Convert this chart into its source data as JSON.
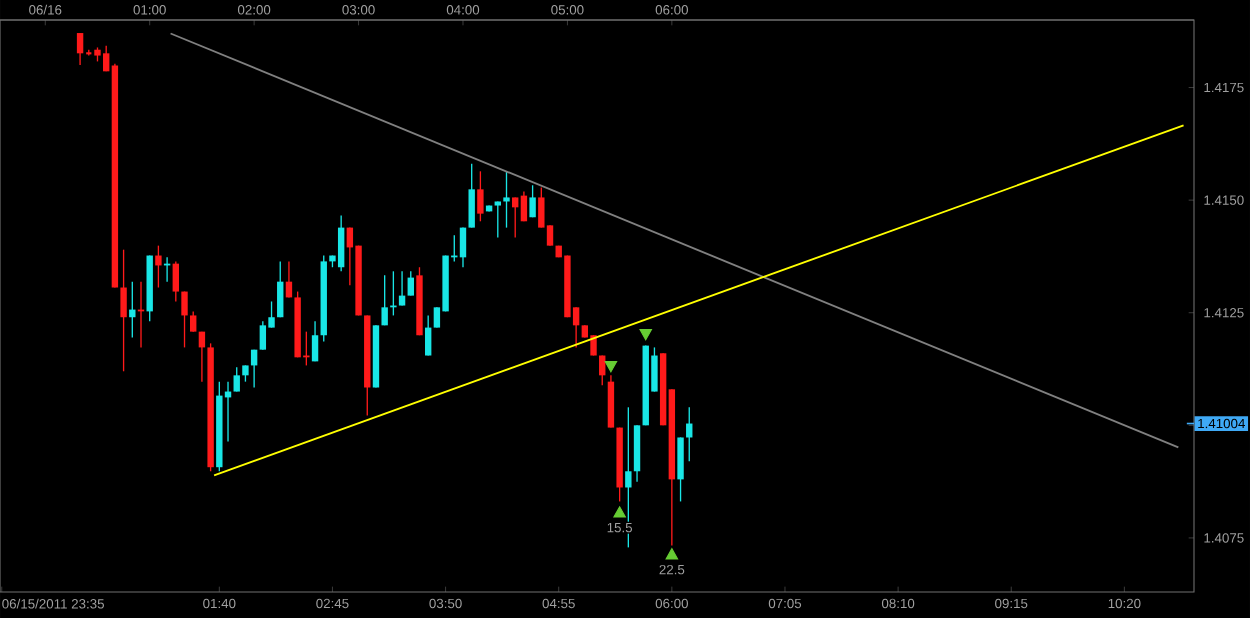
{
  "chart_data": {
    "type": "candlestick",
    "x": [
      "2011-06-16T00:20",
      "2011-06-16T00:25",
      "2011-06-16T00:30",
      "2011-06-16T00:35",
      "2011-06-16T00:40",
      "2011-06-16T00:45",
      "2011-06-16T00:50",
      "2011-06-16T00:55",
      "2011-06-16T01:00",
      "2011-06-16T01:05",
      "2011-06-16T01:10",
      "2011-06-16T01:15",
      "2011-06-16T01:20",
      "2011-06-16T01:25",
      "2011-06-16T01:30",
      "2011-06-16T01:35",
      "2011-06-16T01:40",
      "2011-06-16T01:45",
      "2011-06-16T01:50",
      "2011-06-16T01:55",
      "2011-06-16T02:00",
      "2011-06-16T02:05",
      "2011-06-16T02:10",
      "2011-06-16T02:15",
      "2011-06-16T02:20",
      "2011-06-16T02:25",
      "2011-06-16T02:30",
      "2011-06-16T02:35",
      "2011-06-16T02:40",
      "2011-06-16T02:45",
      "2011-06-16T02:50",
      "2011-06-16T02:55",
      "2011-06-16T03:00",
      "2011-06-16T03:05",
      "2011-06-16T03:10",
      "2011-06-16T03:15",
      "2011-06-16T03:20",
      "2011-06-16T03:25",
      "2011-06-16T03:30",
      "2011-06-16T03:35",
      "2011-06-16T03:40",
      "2011-06-16T03:45",
      "2011-06-16T03:50",
      "2011-06-16T03:55",
      "2011-06-16T04:00",
      "2011-06-16T04:05",
      "2011-06-16T04:10",
      "2011-06-16T04:15",
      "2011-06-16T04:20",
      "2011-06-16T04:25",
      "2011-06-16T04:30",
      "2011-06-16T04:35",
      "2011-06-16T04:40",
      "2011-06-16T04:45",
      "2011-06-16T04:50",
      "2011-06-16T04:55",
      "2011-06-16T05:00",
      "2011-06-16T05:05",
      "2011-06-16T05:10",
      "2011-06-16T05:15",
      "2011-06-16T05:20",
      "2011-06-16T05:25",
      "2011-06-16T05:30",
      "2011-06-16T05:35",
      "2011-06-16T05:40",
      "2011-06-16T05:45",
      "2011-06-16T05:50",
      "2011-06-16T05:55",
      "2011-06-16T06:00",
      "2011-06-16T06:05",
      "2011-06-16T06:10"
    ],
    "ohlc": [
      [
        1.41871,
        1.41871,
        1.418,
        1.41826
      ],
      [
        1.41826,
        1.41834,
        1.41821,
        1.41826
      ],
      [
        1.41834,
        1.41839,
        1.41808,
        1.41821
      ],
      [
        1.41826,
        1.41843,
        1.41786,
        1.41786
      ],
      [
        1.41799,
        1.41803,
        1.41306,
        1.41306
      ],
      [
        1.41306,
        1.4139,
        1.4112,
        1.4124
      ],
      [
        1.4124,
        1.41319,
        1.41195,
        1.41257
      ],
      [
        1.41257,
        1.41319,
        1.41173,
        1.41253
      ],
      [
        1.41253,
        1.41377,
        1.41231,
        1.41377
      ],
      [
        1.41377,
        1.41399,
        1.41306,
        1.41355
      ],
      [
        1.41355,
        1.41373,
        1.41319,
        1.41359
      ],
      [
        1.41359,
        1.41364,
        1.41275,
        1.41297
      ],
      [
        1.41297,
        1.41297,
        1.41173,
        1.41244
      ],
      [
        1.41244,
        1.41253,
        1.41208,
        1.41208
      ],
      [
        1.41208,
        1.41208,
        1.41097,
        1.41173
      ],
      [
        1.41173,
        1.41182,
        1.40898,
        1.40907
      ],
      [
        1.40907,
        1.41097,
        1.40898,
        1.41066
      ],
      [
        1.41062,
        1.41097,
        1.40964,
        1.41075
      ],
      [
        1.41075,
        1.41129,
        1.41075,
        1.41111
      ],
      [
        1.41111,
        1.41133,
        1.41097,
        1.41133
      ],
      [
        1.41133,
        1.41168,
        1.41084,
        1.41168
      ],
      [
        1.41168,
        1.41231,
        1.41168,
        1.41222
      ],
      [
        1.41217,
        1.41275,
        1.41217,
        1.4124
      ],
      [
        1.4124,
        1.41364,
        1.4124,
        1.41319
      ],
      [
        1.41319,
        1.41364,
        1.41284,
        1.41284
      ],
      [
        1.41284,
        1.41297,
        1.41151,
        1.41151
      ],
      [
        1.41155,
        1.41208,
        1.41133,
        1.41151
      ],
      [
        1.41142,
        1.41231,
        1.41142,
        1.412
      ],
      [
        1.412,
        1.41377,
        1.41186,
        1.41364
      ],
      [
        1.41364,
        1.41377,
        1.41351,
        1.41377
      ],
      [
        1.41351,
        1.41466,
        1.41342,
        1.41439
      ],
      [
        1.41439,
        1.41439,
        1.41311,
        1.41395
      ],
      [
        1.41399,
        1.41399,
        1.41244,
        1.41244
      ],
      [
        1.41244,
        1.41244,
        1.41022,
        1.41084
      ],
      [
        1.41084,
        1.41222,
        1.41084,
        1.41222
      ],
      [
        1.41222,
        1.41333,
        1.41222,
        1.41262
      ],
      [
        1.41262,
        1.41342,
        1.41244,
        1.41266
      ],
      [
        1.41266,
        1.41342,
        1.41266,
        1.41288
      ],
      [
        1.41288,
        1.41342,
        1.41288,
        1.41328
      ],
      [
        1.41333,
        1.41351,
        1.412,
        1.412
      ],
      [
        1.41155,
        1.41244,
        1.41155,
        1.41217
      ],
      [
        1.41217,
        1.41262,
        1.41217,
        1.41262
      ],
      [
        1.41253,
        1.41377,
        1.41253,
        1.41377
      ],
      [
        1.41373,
        1.41422,
        1.41364,
        1.41377
      ],
      [
        1.41373,
        1.41439,
        1.41351,
        1.41439
      ],
      [
        1.41439,
        1.41581,
        1.41439,
        1.41524
      ],
      [
        1.41524,
        1.41564,
        1.41453,
        1.4147
      ],
      [
        1.41475,
        1.41488,
        1.41475,
        1.41488
      ],
      [
        1.41488,
        1.41497,
        1.41417,
        1.41497
      ],
      [
        1.41497,
        1.41564,
        1.41439,
        1.41506
      ],
      [
        1.41506,
        1.41506,
        1.41417,
        1.41484
      ],
      [
        1.4151,
        1.41519,
        1.41453,
        1.41453
      ],
      [
        1.41462,
        1.41533,
        1.41462,
        1.41506
      ],
      [
        1.41506,
        1.41528,
        1.41439,
        1.41439
      ],
      [
        1.41444,
        1.41444,
        1.41399,
        1.41399
      ],
      [
        1.41399,
        1.41399,
        1.41373,
        1.41373
      ],
      [
        1.41377,
        1.41377,
        1.4124,
        1.4124
      ],
      [
        1.41262,
        1.41262,
        1.41173,
        1.41222
      ],
      [
        1.41222,
        1.41222,
        1.41195,
        1.41195
      ],
      [
        1.412,
        1.412,
        1.41155,
        1.41155
      ],
      [
        1.41155,
        1.41155,
        1.41089,
        1.41111
      ],
      [
        1.41097,
        1.41111,
        1.40995,
        1.40995
      ],
      [
        1.40995,
        1.40995,
        1.40831,
        1.40862
      ],
      [
        1.40862,
        1.4104,
        1.40729,
        1.40898
      ],
      [
        1.40898,
        1.41,
        1.40875,
        1.41
      ],
      [
        1.41,
        1.41177,
        1.41,
        1.41177
      ],
      [
        1.41075,
        1.41173,
        1.41075,
        1.41155
      ],
      [
        1.4116,
        1.4116,
        1.41,
        1.41
      ],
      [
        1.4108,
        1.4108,
        1.40733,
        1.4088
      ],
      [
        1.4088,
        1.40973,
        1.40831,
        1.40973
      ],
      [
        1.40973,
        1.4104,
        1.4092,
        1.41004
      ]
    ],
    "colors": [
      "#ff1a1a",
      "#ff1a1a",
      "#ff1a1a",
      "#ff1a1a",
      "#ff1a1a",
      "#ff1a1a",
      "#19e6e6",
      "#ff1a1a",
      "#19e6e6",
      "#ff1a1a",
      "#19e6e6",
      "#ff1a1a",
      "#ff1a1a",
      "#ff1a1a",
      "#ff1a1a",
      "#ff1a1a",
      "#19e6e6",
      "#19e6e6",
      "#19e6e6",
      "#19e6e6",
      "#19e6e6",
      "#19e6e6",
      "#19e6e6",
      "#19e6e6",
      "#ff1a1a",
      "#ff1a1a",
      "#ff1a1a",
      "#19e6e6",
      "#19e6e6",
      "#19e6e6",
      "#19e6e6",
      "#ff1a1a",
      "#ff1a1a",
      "#ff1a1a",
      "#19e6e6",
      "#19e6e6",
      "#19e6e6",
      "#19e6e6",
      "#19e6e6",
      "#ff1a1a",
      "#19e6e6",
      "#19e6e6",
      "#19e6e6",
      "#19e6e6",
      "#19e6e6",
      "#19e6e6",
      "#ff1a1a",
      "#19e6e6",
      "#19e6e6",
      "#19e6e6",
      "#ff1a1a",
      "#ff1a1a",
      "#19e6e6",
      "#ff1a1a",
      "#ff1a1a",
      "#ff1a1a",
      "#ff1a1a",
      "#ff1a1a",
      "#ff1a1a",
      "#ff1a1a",
      "#ff1a1a",
      "#ff1a1a",
      "#ff1a1a",
      "#19e6e6",
      "#19e6e6",
      "#19e6e6",
      "#19e6e6",
      "#ff1a1a",
      "#ff1a1a",
      "#19e6e6",
      "#19e6e6"
    ],
    "series": [
      {
        "type": "line",
        "color": "#808080",
        "x": [
          "2011-06-16T01:12",
          "2011-06-16T10:51"
        ],
        "values": [
          1.4187,
          1.40951
        ]
      },
      {
        "type": "line",
        "color": "#ffff00",
        "x": [
          "2011-06-16T01:37",
          "2011-06-16T10:54"
        ],
        "values": [
          1.40889,
          1.41666
        ]
      },
      {
        "type": "scatter",
        "color": "#66cc33",
        "marker": "triangle-down",
        "x": [
          "2011-06-16T05:25",
          "2011-06-16T05:45"
        ],
        "values": [
          1.41133,
          1.41204
        ]
      },
      {
        "type": "scatter",
        "color": "#66cc33",
        "marker": "triangle",
        "x": [
          "2011-06-16T05:30",
          "2011-06-16T06:00"
        ],
        "values": [
          1.40805,
          1.40712
        ]
      }
    ],
    "annotations": [
      "15.5",
      "22.5"
    ],
    "ref_lines": [
      {
        "axis": "y",
        "value": 1.41004,
        "label": "1.41004",
        "color": "#3fa9f5"
      }
    ],
    "xlim": [
      "2011-06-15T23:34",
      "2011-06-16T11:00"
    ],
    "x2lim": [
      "2011-06-15T23:34",
      "2011-06-16T11:00"
    ],
    "ylim": [
      1.4063,
      1.419
    ],
    "xticks": [
      {
        "value": "2011-06-15T23:35",
        "label": "06/15/2011 23:35"
      },
      {
        "value": "2011-06-16T01:40",
        "label": "01:40"
      },
      {
        "value": "2011-06-16T02:45",
        "label": "02:45"
      },
      {
        "value": "2011-06-16T03:50",
        "label": "03:50"
      },
      {
        "value": "2011-06-16T04:55",
        "label": "04:55"
      },
      {
        "value": "2011-06-16T06:00",
        "label": "06:00"
      },
      {
        "value": "2011-06-16T07:05",
        "label": "07:05"
      },
      {
        "value": "2011-06-16T08:10",
        "label": "08:10"
      },
      {
        "value": "2011-06-16T09:15",
        "label": "09:15"
      },
      {
        "value": "2011-06-16T10:20",
        "label": "10:20"
      }
    ],
    "x2ticks": [
      {
        "value": "2011-06-16T00:00",
        "label": "06/16"
      },
      {
        "value": "2011-06-16T01:00",
        "label": "01:00"
      },
      {
        "value": "2011-06-16T02:00",
        "label": "02:00"
      },
      {
        "value": "2011-06-16T03:00",
        "label": "03:00"
      },
      {
        "value": "2011-06-16T04:00",
        "label": "04:00"
      },
      {
        "value": "2011-06-16T05:00",
        "label": "05:00"
      },
      {
        "value": "2011-06-16T06:00",
        "label": "06:00"
      }
    ],
    "yticks": [
      1.4075,
      {
        "value": 1.41,
        "label": null
      },
      1.4125,
      {
        "value": 1.415,
        "label": "1.4150"
      },
      1.4175
    ]
  }
}
